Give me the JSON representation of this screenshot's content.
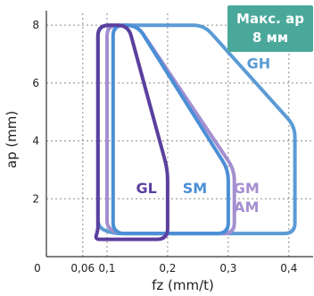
{
  "chart_data": {
    "type": "scatter",
    "xlabel": "fz (mm/t)",
    "ylabel": "ap (mm)",
    "grid": true,
    "x_ticks": [
      {
        "value": 0,
        "label": "0"
      },
      {
        "value": 0.06,
        "label": "0,06"
      },
      {
        "value": 0.1,
        "label": "0,1"
      },
      {
        "value": 0.2,
        "label": "0,2"
      },
      {
        "value": 0.3,
        "label": "0,3"
      },
      {
        "value": 0.4,
        "label": "0,4"
      }
    ],
    "y_ticks": [
      {
        "value": 2,
        "label": "2"
      },
      {
        "value": 4,
        "label": "4"
      },
      {
        "value": 6,
        "label": "6"
      },
      {
        "value": 8,
        "label": "8"
      }
    ],
    "xlim": [
      0,
      0.44
    ],
    "ylim": [
      0,
      8.5
    ],
    "badge": {
      "line1": "Макс. ap",
      "line2": "8 мм",
      "color": "#4aa89a"
    },
    "regions": [
      {
        "name": "GH",
        "color": "#5b9bd5",
        "outline": [
          [
            0.085,
            8.0
          ],
          [
            0.26,
            8.0
          ],
          [
            0.41,
            4.5
          ],
          [
            0.41,
            0.8
          ],
          [
            0.11,
            0.8
          ],
          [
            0.085,
            1.0
          ]
        ],
        "label_pos": [
          0.35,
          6.5
        ]
      },
      {
        "name": "GM",
        "color": "#a48fd0",
        "outline": [
          [
            0.1,
            8.0
          ],
          [
            0.15,
            8.0
          ],
          [
            0.31,
            3.0
          ],
          [
            0.31,
            0.8
          ],
          [
            0.12,
            0.8
          ],
          [
            0.1,
            1.0
          ]
        ],
        "label_pos": [
          0.33,
          2.2
        ]
      },
      {
        "name": "AM",
        "color": "#a48fd0",
        "outline": [],
        "label_pos": [
          0.33,
          1.55
        ]
      },
      {
        "name": "SM",
        "color": "#4b8fd6",
        "outline": [
          [
            0.11,
            8.0
          ],
          [
            0.15,
            8.0
          ],
          [
            0.3,
            3.0
          ],
          [
            0.3,
            0.8
          ],
          [
            0.12,
            0.8
          ],
          [
            0.11,
            1.0
          ]
        ],
        "label_pos": [
          0.245,
          2.2
        ]
      },
      {
        "name": "GL",
        "color": "#5b3f9e",
        "outline": [
          [
            0.085,
            8.0
          ],
          [
            0.135,
            8.0
          ],
          [
            0.2,
            3.0
          ],
          [
            0.2,
            0.6
          ],
          [
            0.08,
            0.6
          ],
          [
            0.085,
            0.9
          ]
        ],
        "label_pos": [
          0.165,
          2.2
        ]
      }
    ]
  }
}
